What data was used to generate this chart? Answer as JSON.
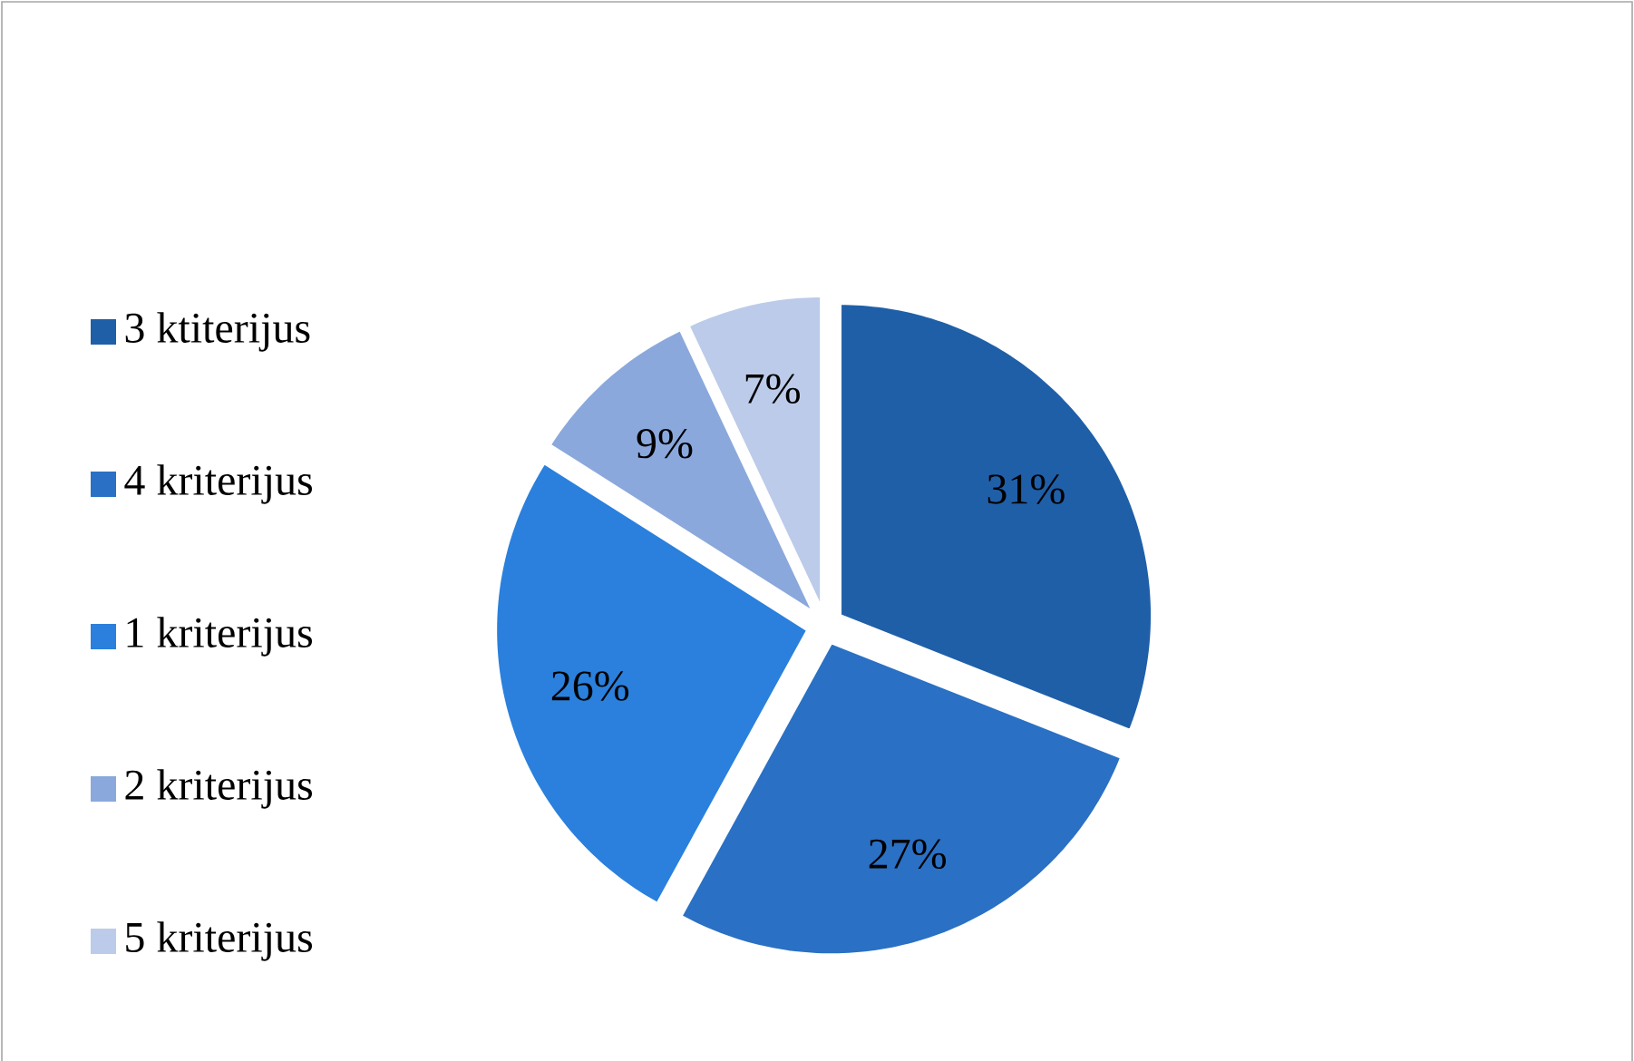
{
  "chart_data": {
    "type": "pie",
    "categories": [
      "3 ktiterijus",
      "4 kriterijus",
      "1 kriterijus",
      "2 kriterijus",
      "5 kriterijus"
    ],
    "values": [
      31,
      27,
      26,
      9,
      7
    ],
    "value_labels": [
      "31%",
      "27%",
      "26%",
      "9%",
      "7%"
    ],
    "colors": [
      "#1f5fa8",
      "#2a70c4",
      "#2a80dc",
      "#8aa8dc",
      "#bccbe9"
    ],
    "legend": "left"
  }
}
